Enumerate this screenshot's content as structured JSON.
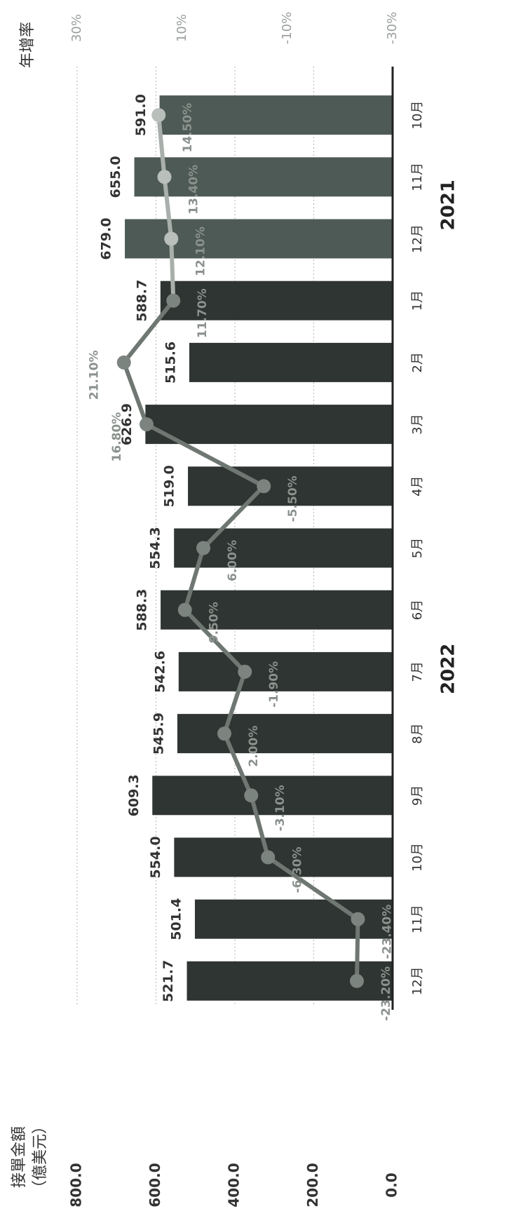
{
  "chart_data": {
    "type": "bar",
    "left_axis_title": "接單金額",
    "left_axis_unit": "（億美元）",
    "right_axis_title": "年增率",
    "left_ylim": [
      0,
      800
    ],
    "left_ticks": [
      "0.0",
      "200.0",
      "400.0",
      "600.0",
      "800.0"
    ],
    "right_ylim": [
      -30,
      30
    ],
    "right_ticks": [
      "-30%",
      "-10%",
      "10%",
      "30%"
    ],
    "grid": true,
    "categories": [
      "10月",
      "11月",
      "12月",
      "1月",
      "2月",
      "3月",
      "4月",
      "5月",
      "6月",
      "7月",
      "8月",
      "9月",
      "10月",
      "11月",
      "12月"
    ],
    "groups": [
      {
        "label": "2021",
        "from": 0,
        "to": 2
      },
      {
        "label": "2022",
        "from": 3,
        "to": 14
      }
    ],
    "series": [
      {
        "type": "bar",
        "values": [
          591.0,
          655.0,
          679.0,
          588.7,
          515.6,
          626.9,
          519.0,
          554.3,
          588.3,
          542.6,
          545.9,
          609.3,
          554.0,
          501.4,
          521.7
        ],
        "labels": [
          "591.0",
          "655.0",
          "679.0",
          "588.7",
          "515.6",
          "626.9",
          "519.0",
          "554.3",
          "588.3",
          "542.6",
          "545.9",
          "609.3",
          "554.0",
          "501.4",
          "521.7"
        ]
      },
      {
        "type": "line",
        "axis": "right",
        "values": [
          14.5,
          13.4,
          12.1,
          11.7,
          21.1,
          16.8,
          -5.5,
          6.0,
          9.5,
          -1.9,
          2.0,
          -3.1,
          -6.3,
          -23.4,
          -23.2
        ],
        "labels": [
          "14.50%",
          "13.40%",
          "12.10%",
          "11.70%",
          "21.10%",
          "16.80%",
          "-5.50%",
          "6.00%",
          "9.50%",
          "-1.90%",
          "2.00%",
          "-3.10%",
          "-6.30%",
          "-23.40%",
          "-23.20%"
        ]
      }
    ]
  }
}
